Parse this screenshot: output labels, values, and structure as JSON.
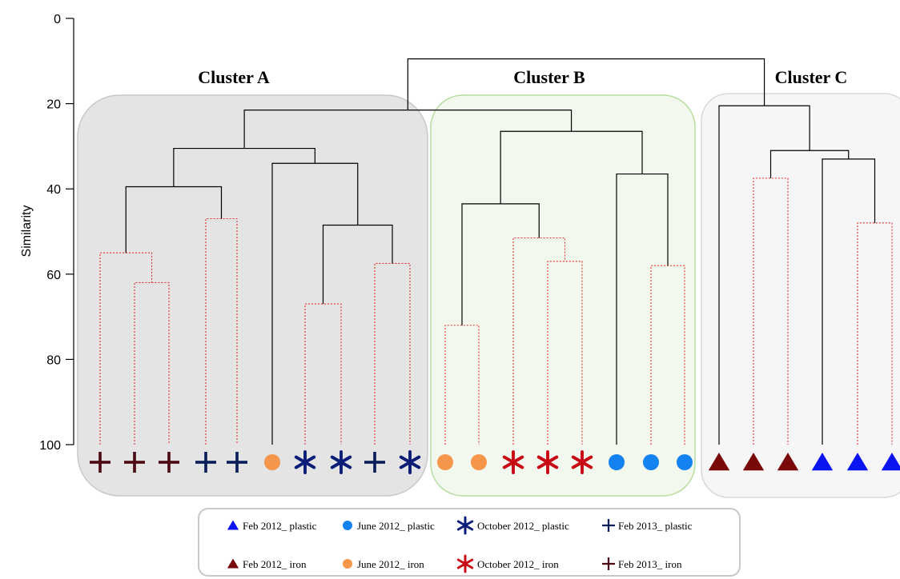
{
  "chart_data": {
    "type": "dendrogram",
    "ylabel": "Similarity",
    "ylim": [
      0,
      100
    ],
    "yticks": [
      0,
      20,
      40,
      60,
      80,
      100
    ],
    "clusters": [
      {
        "name": "Cluster A",
        "fill": "#e4e4e4",
        "stroke": "#c8c8c8"
      },
      {
        "name": "Cluster B",
        "fill": "#f3f8ee",
        "stroke": "#b7dda0"
      },
      {
        "name": "Cluster C",
        "fill": "#f6f6f6",
        "stroke": "#d8d8d8"
      }
    ],
    "leaves": [
      "feb13_iron",
      "feb13_iron",
      "feb13_iron",
      "feb13_plastic",
      "feb13_plastic",
      "jun12_iron",
      "oct12_plastic",
      "oct12_plastic",
      "feb13_plastic",
      "oct12_plastic",
      "jun12_iron",
      "jun12_iron",
      "oct12_iron",
      "oct12_iron",
      "oct12_iron",
      "jun12_plastic",
      "jun12_plastic",
      "jun12_plastic",
      "feb12_iron",
      "feb12_iron",
      "feb12_iron",
      "feb12_plastic",
      "feb12_plastic",
      "feb12_plastic"
    ],
    "merges": [
      {
        "left": 1,
        "right": 2,
        "similarity": 62,
        "sig": false
      },
      {
        "left": 0,
        "right": "m0",
        "similarity": 55,
        "sig": false
      },
      {
        "left": 3,
        "right": 4,
        "similarity": 47,
        "sig": false
      },
      {
        "left": "m1",
        "right": "m2",
        "similarity": 39.5,
        "sig": true
      },
      {
        "left": 6,
        "right": 7,
        "similarity": 67,
        "sig": false
      },
      {
        "left": 8,
        "right": 9,
        "similarity": 57.5,
        "sig": false
      },
      {
        "left": "m4",
        "right": "m5",
        "similarity": 48.5,
        "sig": true
      },
      {
        "left": 5,
        "right": "m6",
        "similarity": 34,
        "sig": true
      },
      {
        "left": "m3",
        "right": "m7",
        "similarity": 30.5,
        "sig": true
      },
      {
        "left": 10,
        "right": 11,
        "similarity": 72,
        "sig": false
      },
      {
        "left": 13,
        "right": 14,
        "similarity": 57,
        "sig": false
      },
      {
        "left": 12,
        "right": "m10",
        "similarity": 51.5,
        "sig": false
      },
      {
        "left": "m9",
        "right": "m11",
        "similarity": 43.5,
        "sig": true
      },
      {
        "left": 16,
        "right": 17,
        "similarity": 58,
        "sig": false
      },
      {
        "left": 15,
        "right": "m13",
        "similarity": 36.5,
        "sig": true
      },
      {
        "left": "m12",
        "right": "m14",
        "similarity": 26.5,
        "sig": true
      },
      {
        "left": "m8",
        "right": "m15",
        "similarity": 21.5,
        "sig": true
      },
      {
        "left": 19,
        "right": 20,
        "similarity": 37.5,
        "sig": false
      },
      {
        "left": 22,
        "right": 23,
        "similarity": 48,
        "sig": false
      },
      {
        "left": 21,
        "right": "m18",
        "similarity": 33,
        "sig": true
      },
      {
        "left": "m17",
        "right": "m19",
        "similarity": 31,
        "sig": true
      },
      {
        "left": 18,
        "right": "m20",
        "similarity": 20.5,
        "sig": true
      },
      {
        "left": "m16",
        "right": "m21",
        "similarity": 9.5,
        "sig": true
      }
    ]
  },
  "markers": {
    "feb12_plastic": {
      "shape": "triangle",
      "color": "#0a14f0"
    },
    "feb12_iron": {
      "shape": "triangle",
      "color": "#7a0a0a"
    },
    "jun12_plastic": {
      "shape": "circle",
      "color": "#1482f0"
    },
    "jun12_iron": {
      "shape": "circle",
      "color": "#f5964b"
    },
    "oct12_plastic": {
      "shape": "asterisk",
      "color": "#0a1e78"
    },
    "oct12_iron": {
      "shape": "asterisk",
      "color": "#c80a14"
    },
    "feb13_plastic": {
      "shape": "plus",
      "color": "#0a1e5a"
    },
    "feb13_iron": {
      "shape": "plus",
      "color": "#4b0a14"
    }
  },
  "legend": {
    "entries": [
      {
        "key": "feb12_plastic",
        "label": "Feb 2012_ plastic"
      },
      {
        "key": "jun12_plastic",
        "label": "June 2012_ plastic"
      },
      {
        "key": "oct12_plastic",
        "label": "October 2012_ plastic"
      },
      {
        "key": "feb13_plastic",
        "label": "Feb 2013_ plastic"
      },
      {
        "key": "feb12_iron",
        "label": "Feb 2012_ iron"
      },
      {
        "key": "jun12_iron",
        "label": "June 2012_ iron"
      },
      {
        "key": "oct12_iron",
        "label": "October 2012_ iron"
      },
      {
        "key": "feb13_iron",
        "label": "Feb 2013_ iron"
      }
    ]
  }
}
